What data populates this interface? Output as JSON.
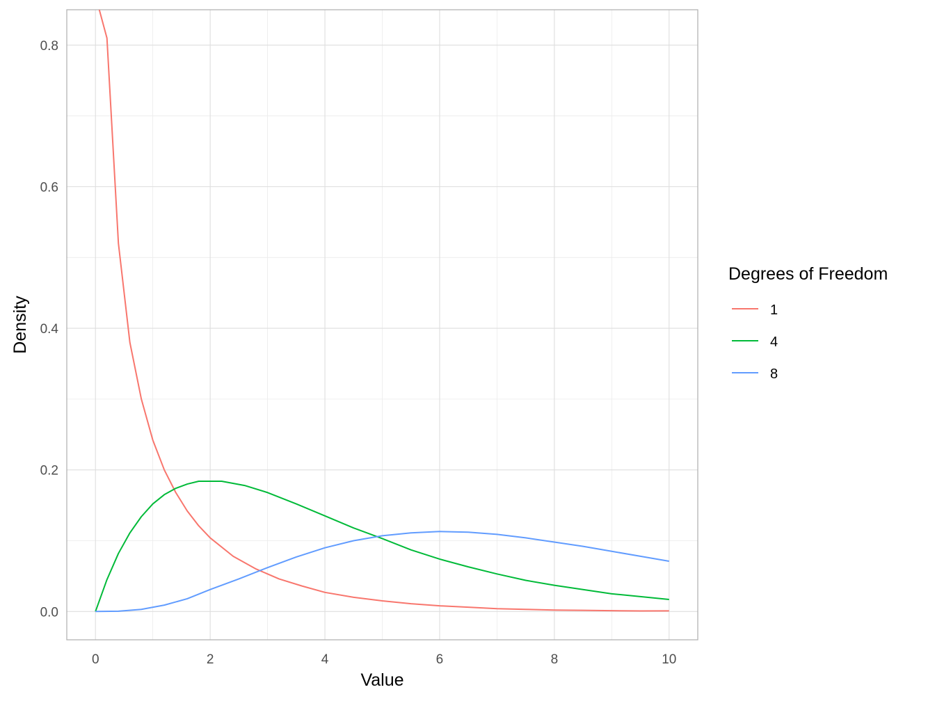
{
  "chart_data": {
    "type": "line",
    "title": "",
    "xlabel": "Value",
    "ylabel": "Density",
    "xlim": [
      -0.5,
      10.5
    ],
    "ylim": [
      -0.04,
      0.85
    ],
    "x_ticks": [
      0,
      2,
      4,
      6,
      8,
      10
    ],
    "x_tick_labels": [
      "0",
      "2",
      "4",
      "6",
      "8",
      "10"
    ],
    "y_ticks": [
      0.0,
      0.2,
      0.4,
      0.6,
      0.8
    ],
    "y_tick_labels": [
      "0.0",
      "0.2",
      "0.4",
      "0.6",
      "0.8"
    ],
    "grid": true,
    "legend": {
      "title": "Degrees of Freedom",
      "position": "right"
    },
    "series": [
      {
        "name": "1",
        "color": "#F8766D",
        "points": [
          [
            0.0,
            0.87
          ],
          [
            0.2,
            0.81
          ],
          [
            0.4,
            0.52
          ],
          [
            0.6,
            0.38
          ],
          [
            0.8,
            0.3
          ],
          [
            1.0,
            0.242
          ],
          [
            1.2,
            0.2
          ],
          [
            1.4,
            0.168
          ],
          [
            1.6,
            0.142
          ],
          [
            1.8,
            0.121
          ],
          [
            2.0,
            0.104
          ],
          [
            2.4,
            0.078
          ],
          [
            2.8,
            0.06
          ],
          [
            3.2,
            0.046
          ],
          [
            3.6,
            0.036
          ],
          [
            4.0,
            0.027
          ],
          [
            4.5,
            0.02
          ],
          [
            5.0,
            0.015
          ],
          [
            5.5,
            0.011
          ],
          [
            6.0,
            0.008
          ],
          [
            6.5,
            0.006
          ],
          [
            7.0,
            0.004
          ],
          [
            7.5,
            0.003
          ],
          [
            8.0,
            0.002
          ],
          [
            8.5,
            0.0016
          ],
          [
            9.0,
            0.0011
          ],
          [
            9.5,
            0.0008
          ],
          [
            10.0,
            0.0009
          ]
        ]
      },
      {
        "name": "4",
        "color": "#00BA38",
        "points": [
          [
            0.0,
            0.0
          ],
          [
            0.2,
            0.045
          ],
          [
            0.4,
            0.082
          ],
          [
            0.6,
            0.111
          ],
          [
            0.8,
            0.134
          ],
          [
            1.0,
            0.152
          ],
          [
            1.2,
            0.165
          ],
          [
            1.4,
            0.174
          ],
          [
            1.6,
            0.18
          ],
          [
            1.8,
            0.184
          ],
          [
            2.0,
            0.184
          ],
          [
            2.2,
            0.184
          ],
          [
            2.6,
            0.178
          ],
          [
            3.0,
            0.168
          ],
          [
            3.5,
            0.152
          ],
          [
            4.0,
            0.135
          ],
          [
            4.5,
            0.118
          ],
          [
            5.0,
            0.103
          ],
          [
            5.5,
            0.087
          ],
          [
            6.0,
            0.074
          ],
          [
            6.5,
            0.063
          ],
          [
            7.0,
            0.053
          ],
          [
            7.5,
            0.044
          ],
          [
            8.0,
            0.037
          ],
          [
            8.5,
            0.031
          ],
          [
            9.0,
            0.025
          ],
          [
            9.5,
            0.021
          ],
          [
            10.0,
            0.017
          ]
        ]
      },
      {
        "name": "8",
        "color": "#619CFF",
        "points": [
          [
            0.0,
            0.0
          ],
          [
            0.4,
            0.0004
          ],
          [
            0.8,
            0.003
          ],
          [
            1.2,
            0.009
          ],
          [
            1.6,
            0.018
          ],
          [
            2.0,
            0.031
          ],
          [
            2.5,
            0.046
          ],
          [
            3.0,
            0.062
          ],
          [
            3.5,
            0.077
          ],
          [
            4.0,
            0.09
          ],
          [
            4.5,
            0.1
          ],
          [
            5.0,
            0.107
          ],
          [
            5.5,
            0.111
          ],
          [
            6.0,
            0.113
          ],
          [
            6.5,
            0.112
          ],
          [
            7.0,
            0.109
          ],
          [
            7.5,
            0.104
          ],
          [
            8.0,
            0.098
          ],
          [
            8.5,
            0.092
          ],
          [
            9.0,
            0.085
          ],
          [
            9.5,
            0.078
          ],
          [
            10.0,
            0.071
          ]
        ]
      }
    ]
  }
}
